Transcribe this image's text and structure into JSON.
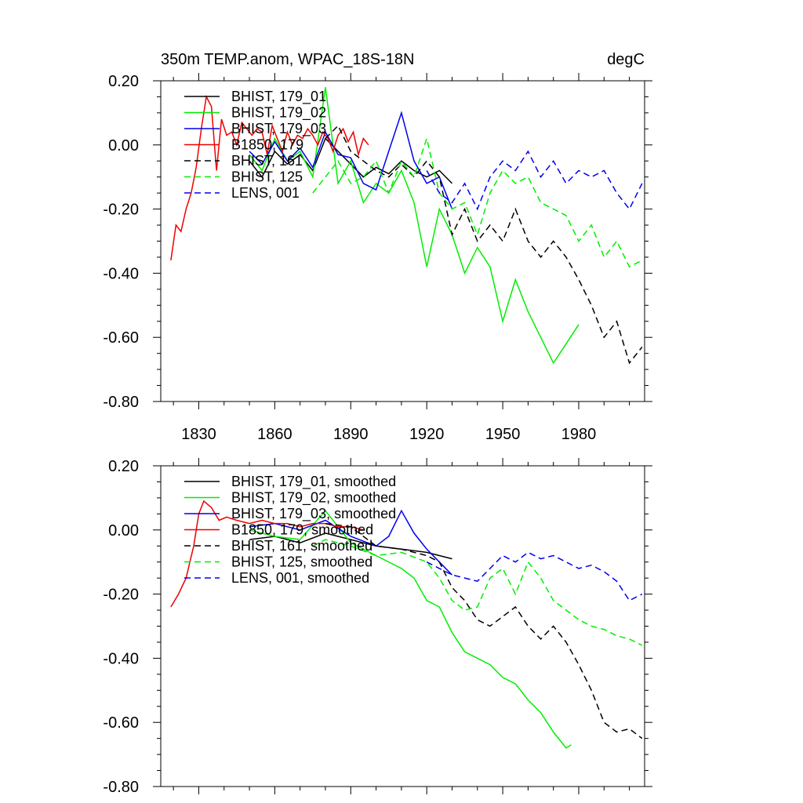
{
  "chart_data": [
    {
      "type": "line",
      "title": "350m TEMP.anom, WPAC_18S-18N",
      "units": "degC",
      "xlabel": "",
      "ylabel": "",
      "xlim": [
        1815,
        2006
      ],
      "ylim": [
        -0.8,
        0.2
      ],
      "xticks": [
        1830,
        1860,
        1890,
        1920,
        1950,
        1980
      ],
      "xtick_labels": [
        "1830",
        "1860",
        "1890",
        "1920",
        "1950",
        "1980"
      ],
      "yticks": [
        0.2,
        0.0,
        -0.2,
        -0.4,
        -0.6,
        -0.8
      ],
      "ytick_labels": [
        "0.20",
        "0.00",
        "-0.20",
        "-0.40",
        "-0.60",
        "-0.80"
      ],
      "legend_position": "top-left",
      "grid": false,
      "series": [
        {
          "name": "BHIST, 179_01",
          "color": "#000000",
          "dash": false,
          "x": [
            1850,
            1855,
            1860,
            1865,
            1870,
            1875,
            1880,
            1885,
            1890,
            1895,
            1900,
            1905,
            1910,
            1915,
            1920,
            1925,
            1930
          ],
          "y": [
            -0.05,
            -0.1,
            -0.02,
            -0.06,
            -0.03,
            -0.08,
            0.02,
            -0.02,
            -0.06,
            -0.1,
            -0.07,
            -0.09,
            -0.05,
            -0.08,
            -0.1,
            -0.08,
            -0.12
          ]
        },
        {
          "name": "BHIST, 179_02",
          "color": "#00ee00",
          "dash": false,
          "x": [
            1850,
            1855,
            1860,
            1865,
            1870,
            1875,
            1880,
            1885,
            1890,
            1895,
            1900,
            1905,
            1910,
            1915,
            1920,
            1925,
            1930,
            1935,
            1940,
            1945,
            1950,
            1955,
            1960,
            1965,
            1970,
            1975,
            1980
          ],
          "y": [
            -0.03,
            -0.08,
            0.02,
            -0.05,
            -0.02,
            -0.1,
            0.18,
            -0.12,
            -0.05,
            -0.18,
            -0.12,
            -0.15,
            -0.08,
            -0.18,
            -0.38,
            -0.2,
            -0.28,
            -0.4,
            -0.32,
            -0.38,
            -0.55,
            -0.42,
            -0.52,
            -0.6,
            -0.68,
            -0.62,
            -0.56
          ]
        },
        {
          "name": "BHIST, 179_03",
          "color": "#0000ee",
          "dash": false,
          "x": [
            1850,
            1855,
            1860,
            1865,
            1870,
            1875,
            1880,
            1885,
            1890,
            1895,
            1900,
            1905,
            1910,
            1915,
            1920,
            1925,
            1930
          ],
          "y": [
            -0.02,
            -0.06,
            0.01,
            -0.05,
            -0.01,
            -0.07,
            0.04,
            -0.03,
            -0.04,
            -0.12,
            -0.14,
            -0.02,
            0.1,
            -0.05,
            -0.12,
            -0.1,
            -0.2
          ]
        },
        {
          "name": "B1850, 179",
          "color": "#ee0000",
          "dash": false,
          "x": [
            1819,
            1821,
            1823,
            1825,
            1827,
            1829,
            1831,
            1833,
            1835,
            1837,
            1839,
            1841,
            1843,
            1845,
            1847,
            1849,
            1851,
            1853,
            1855,
            1857,
            1859,
            1861,
            1863,
            1865,
            1867,
            1869,
            1871,
            1873,
            1875,
            1877,
            1879,
            1881,
            1883,
            1885,
            1887,
            1889,
            1891,
            1893,
            1895,
            1897
          ],
          "y": [
            -0.36,
            -0.25,
            -0.27,
            -0.2,
            -0.15,
            -0.07,
            0.05,
            0.15,
            0.12,
            -0.08,
            0.08,
            0.03,
            0.04,
            0.0,
            0.07,
            0.05,
            0.03,
            0.05,
            0.04,
            -0.03,
            0.06,
            0.02,
            -0.02,
            0.04,
            0.0,
            0.03,
            0.02,
            0.05,
            0.03,
            0.0,
            0.04,
            0.02,
            -0.02,
            0.03,
            0.05,
            0.01,
            0.04,
            -0.03,
            0.02,
            0.0
          ]
        },
        {
          "name": "BHIST, 161",
          "color": "#000000",
          "dash": true,
          "x": [
            1880,
            1885,
            1890,
            1895,
            1900,
            1905,
            1910,
            1915,
            1920,
            1925,
            1930,
            1935,
            1940,
            1945,
            1950,
            1955,
            1960,
            1965,
            1970,
            1975,
            1980,
            1985,
            1990,
            1995,
            2000,
            2005
          ],
          "y": [
            0.02,
            0.06,
            -0.02,
            -0.05,
            -0.08,
            -0.1,
            -0.06,
            -0.1,
            -0.05,
            -0.1,
            -0.28,
            -0.2,
            -0.3,
            -0.25,
            -0.3,
            -0.2,
            -0.3,
            -0.35,
            -0.3,
            -0.35,
            -0.42,
            -0.5,
            -0.6,
            -0.55,
            -0.68,
            -0.63
          ]
        },
        {
          "name": "BHIST, 125",
          "color": "#00ee00",
          "dash": true,
          "x": [
            1875,
            1880,
            1885,
            1890,
            1895,
            1900,
            1905,
            1910,
            1915,
            1920,
            1925,
            1930,
            1935,
            1940,
            1945,
            1950,
            1955,
            1960,
            1965,
            1970,
            1975,
            1980,
            1985,
            1990,
            1995,
            2000,
            2005
          ],
          "y": [
            -0.15,
            -0.1,
            -0.05,
            -0.12,
            -0.1,
            -0.05,
            -0.15,
            -0.05,
            -0.1,
            0.02,
            -0.15,
            -0.2,
            -0.18,
            -0.28,
            -0.15,
            -0.08,
            -0.12,
            -0.1,
            -0.18,
            -0.2,
            -0.22,
            -0.3,
            -0.25,
            -0.35,
            -0.3,
            -0.38,
            -0.36
          ]
        },
        {
          "name": "LENS, 001",
          "color": "#0000ee",
          "dash": true,
          "x": [
            1920,
            1925,
            1930,
            1935,
            1940,
            1945,
            1950,
            1955,
            1960,
            1965,
            1970,
            1975,
            1980,
            1985,
            1990,
            1995,
            2000,
            2005
          ],
          "y": [
            -0.08,
            -0.15,
            -0.18,
            -0.12,
            -0.2,
            -0.1,
            -0.05,
            -0.08,
            -0.02,
            -0.1,
            -0.05,
            -0.12,
            -0.08,
            -0.1,
            -0.08,
            -0.15,
            -0.2,
            -0.12
          ]
        }
      ]
    },
    {
      "type": "line",
      "title": "",
      "units": "",
      "xlabel": "",
      "ylabel": "",
      "xlim": [
        1815,
        2006
      ],
      "ylim": [
        -0.8,
        0.2
      ],
      "xticks": [
        1830,
        1860,
        1890,
        1920,
        1950,
        1980
      ],
      "xtick_labels": [],
      "yticks": [
        0.2,
        0.0,
        -0.2,
        -0.4,
        -0.6,
        -0.8
      ],
      "ytick_labels": [
        "0.20",
        "0.00",
        "-0.20",
        "-0.40",
        "-0.60",
        "-0.80"
      ],
      "legend_position": "top-left",
      "grid": false,
      "series": [
        {
          "name": "BHIST, 179_01, smoothed",
          "color": "#000000",
          "dash": false,
          "x": [
            1850,
            1860,
            1870,
            1880,
            1890,
            1900,
            1910,
            1920,
            1930
          ],
          "y": [
            -0.03,
            -0.02,
            -0.04,
            -0.01,
            -0.03,
            -0.05,
            -0.06,
            -0.07,
            -0.09
          ]
        },
        {
          "name": "BHIST, 179_02, smoothed",
          "color": "#00ee00",
          "dash": false,
          "x": [
            1850,
            1860,
            1870,
            1880,
            1890,
            1900,
            1910,
            1915,
            1920,
            1925,
            1930,
            1935,
            1940,
            1945,
            1950,
            1955,
            1960,
            1965,
            1970,
            1975,
            1977
          ],
          "y": [
            0.0,
            -0.02,
            -0.03,
            0.06,
            -0.04,
            -0.08,
            -0.12,
            -0.15,
            -0.22,
            -0.24,
            -0.32,
            -0.38,
            -0.4,
            -0.42,
            -0.46,
            -0.48,
            -0.53,
            -0.57,
            -0.63,
            -0.68,
            -0.67
          ]
        },
        {
          "name": "BHIST, 179_03, smoothed",
          "color": "#0000ee",
          "dash": false,
          "x": [
            1850,
            1860,
            1870,
            1880,
            1890,
            1900,
            1905,
            1910,
            1915,
            1920,
            1925,
            1930
          ],
          "y": [
            0.01,
            0.02,
            0.0,
            0.03,
            -0.02,
            -0.05,
            -0.02,
            0.06,
            -0.01,
            -0.06,
            -0.1,
            -0.14
          ]
        },
        {
          "name": "B1850, 179, smoothed",
          "color": "#ee0000",
          "dash": false,
          "x": [
            1819,
            1822,
            1825,
            1828,
            1830,
            1832,
            1835,
            1838,
            1841,
            1845,
            1850,
            1855,
            1860,
            1865,
            1870,
            1875,
            1880,
            1885,
            1890,
            1895
          ],
          "y": [
            -0.24,
            -0.2,
            -0.15,
            -0.05,
            0.05,
            0.09,
            0.07,
            0.03,
            0.04,
            0.03,
            0.02,
            0.03,
            0.02,
            0.02,
            0.01,
            0.02,
            0.02,
            0.01,
            0.01,
            0.0
          ]
        },
        {
          "name": "BHIST, 161, smoothed",
          "color": "#000000",
          "dash": true,
          "x": [
            1880,
            1890,
            1900,
            1910,
            1920,
            1925,
            1930,
            1935,
            1940,
            1945,
            1950,
            1955,
            1960,
            1965,
            1970,
            1975,
            1980,
            1985,
            1990,
            1995,
            2000,
            2005
          ],
          "y": [
            0.02,
            0.01,
            -0.05,
            -0.06,
            -0.08,
            -0.1,
            -0.18,
            -0.22,
            -0.28,
            -0.3,
            -0.27,
            -0.24,
            -0.3,
            -0.34,
            -0.3,
            -0.35,
            -0.42,
            -0.5,
            -0.6,
            -0.63,
            -0.62,
            -0.65
          ]
        },
        {
          "name": "BHIST, 125, smoothed",
          "color": "#00ee00",
          "dash": true,
          "x": [
            1875,
            1880,
            1890,
            1900,
            1910,
            1920,
            1925,
            1930,
            1935,
            1940,
            1945,
            1950,
            1955,
            1960,
            1965,
            1970,
            1975,
            1980,
            1985,
            1990,
            1995,
            2000,
            2005
          ],
          "y": [
            -0.05,
            -0.03,
            -0.05,
            -0.08,
            -0.07,
            -0.1,
            -0.15,
            -0.22,
            -0.25,
            -0.24,
            -0.15,
            -0.12,
            -0.2,
            -0.1,
            -0.15,
            -0.22,
            -0.25,
            -0.28,
            -0.3,
            -0.31,
            -0.33,
            -0.34,
            -0.36
          ]
        },
        {
          "name": "LENS, 001, smoothed",
          "color": "#0000ee",
          "dash": true,
          "x": [
            1920,
            1925,
            1930,
            1935,
            1940,
            1945,
            1950,
            1955,
            1960,
            1965,
            1970,
            1975,
            1980,
            1985,
            1990,
            1995,
            2000,
            2005
          ],
          "y": [
            -0.1,
            -0.12,
            -0.14,
            -0.15,
            -0.16,
            -0.12,
            -0.08,
            -0.1,
            -0.07,
            -0.09,
            -0.08,
            -0.1,
            -0.12,
            -0.11,
            -0.13,
            -0.16,
            -0.22,
            -0.2
          ]
        }
      ]
    }
  ]
}
